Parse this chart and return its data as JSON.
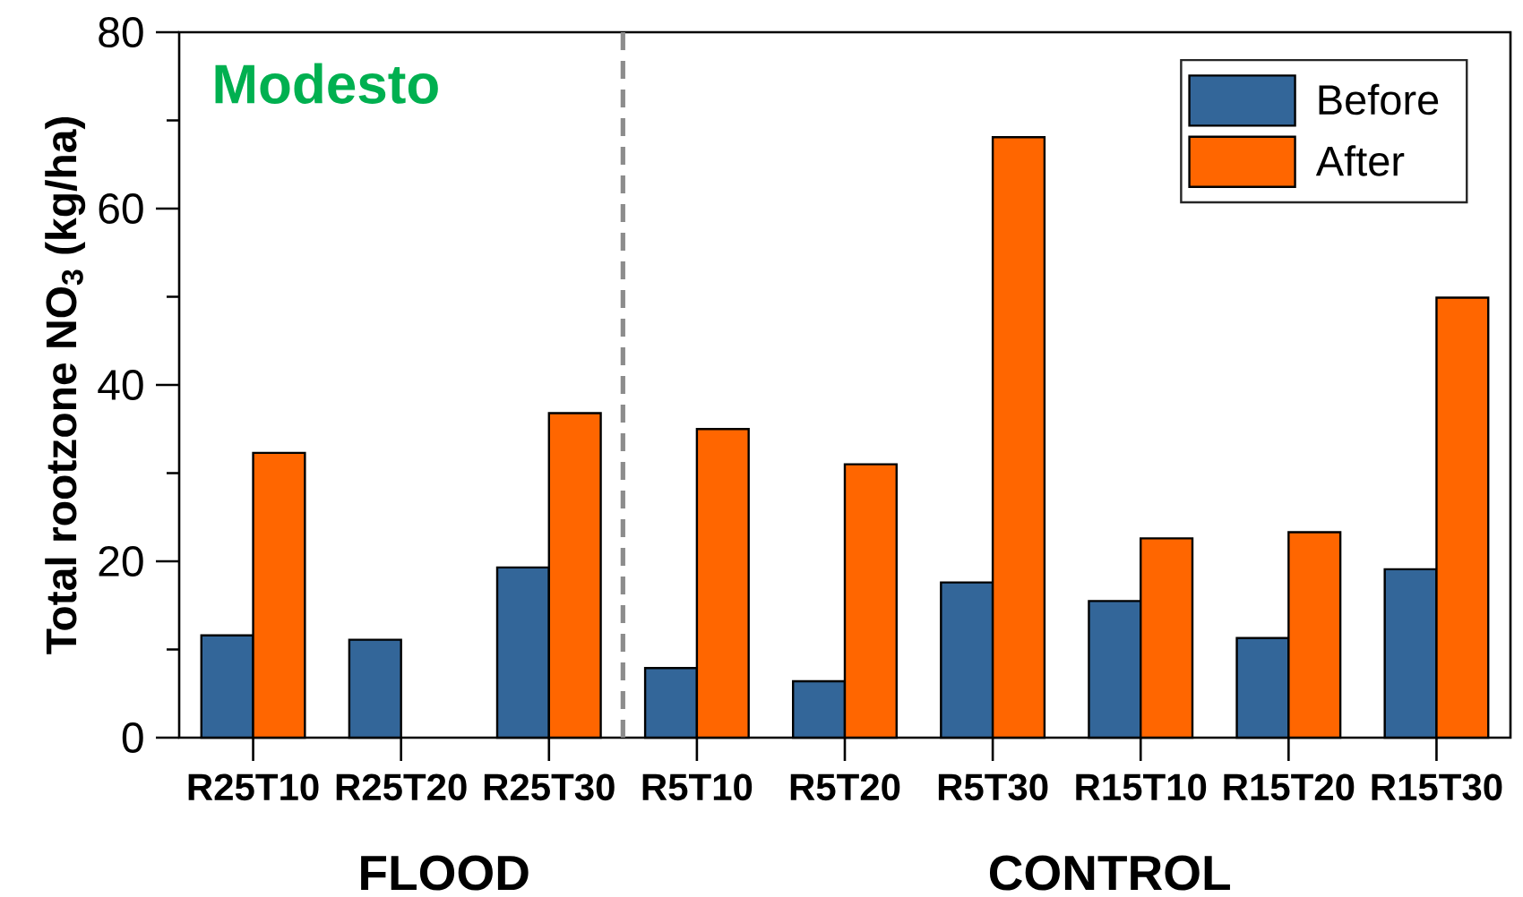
{
  "chart_data": {
    "type": "bar",
    "title": "Modesto",
    "ylabel": "Total rootzone NO$_{3}$ (kg/ha)",
    "categories": [
      "R25T10",
      "R25T20",
      "R25T30",
      "R5T10",
      "R5T20",
      "R5T30",
      "R15T10",
      "R15T20",
      "R15T30"
    ],
    "series": [
      {
        "name": "Before",
        "color": "#336699",
        "values": [
          11.6,
          11.1,
          19.3,
          7.9,
          6.4,
          17.6,
          15.5,
          11.3,
          19.1
        ]
      },
      {
        "name": "After",
        "color": "#ff6600",
        "values": [
          32.3,
          null,
          36.8,
          35.0,
          31.0,
          68.1,
          22.6,
          23.3,
          49.9
        ]
      }
    ],
    "ylim": [
      0,
      80
    ],
    "yticks": [
      0,
      20,
      40,
      60,
      80
    ],
    "legend": "top right",
    "annotations": [
      "FLOOD",
      "CONTROL"
    ]
  }
}
